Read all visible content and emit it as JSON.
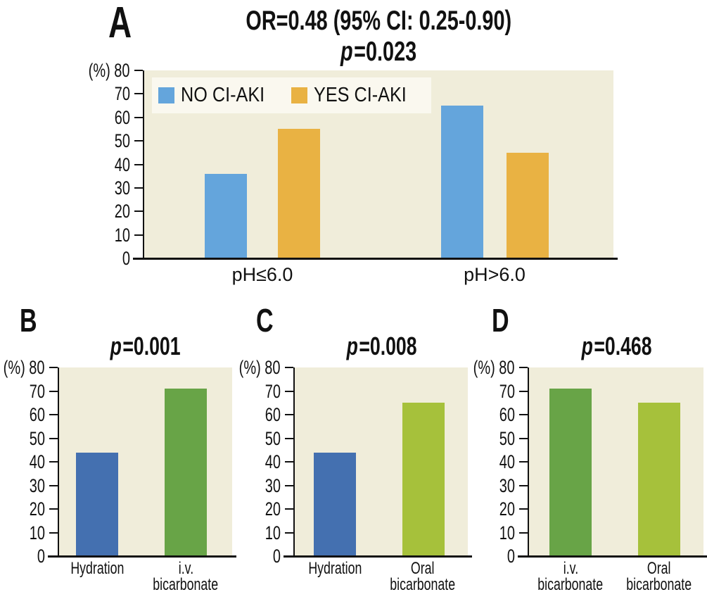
{
  "figure": {
    "colors": {
      "plot_background": "#f0edda",
      "legend_background": "#faf8ef",
      "axis": "#111111",
      "blue_light": "#64a5dc",
      "orange": "#e9b243",
      "blue_dark": "#4470b0",
      "green": "#68a447",
      "yellow_green": "#a6c13b"
    }
  },
  "chart_data": [
    {
      "panel": "A",
      "type": "bar",
      "title": "OR=0.48 (95% CI: 0.25-0.90)",
      "p_label": "p",
      "p_value": "=0.023",
      "y_axis": {
        "unit": "(%)",
        "min": 0,
        "max": 80,
        "step": 10
      },
      "categories": [
        "pH≤6.0",
        "pH>6.0"
      ],
      "series": [
        {
          "name": "NO CI-AKI",
          "color": "#64a5dc",
          "values": [
            36,
            65
          ]
        },
        {
          "name": "YES CI-AKI",
          "color": "#e9b243",
          "values": [
            55,
            45
          ]
        }
      ],
      "legend": {
        "position": "top-left",
        "items": [
          "NO CI-AKI",
          "YES CI-AKI"
        ]
      }
    },
    {
      "panel": "B",
      "type": "bar",
      "p_label": "p",
      "p_value": "=0.001",
      "y_axis": {
        "unit": "(%)",
        "min": 0,
        "max": 80,
        "step": 10
      },
      "categories": [
        [
          "Hydration"
        ],
        [
          "i.v.",
          "bicarbonate"
        ]
      ],
      "bars": [
        {
          "label": "Hydration",
          "value": 44,
          "color": "#4470b0"
        },
        {
          "label": "i.v. bicarbonate",
          "value": 71,
          "color": "#68a447"
        }
      ]
    },
    {
      "panel": "C",
      "type": "bar",
      "p_label": "p",
      "p_value": "=0.008",
      "y_axis": {
        "unit": "(%)",
        "min": 0,
        "max": 80,
        "step": 10
      },
      "categories": [
        [
          "Hydration"
        ],
        [
          "Oral",
          "bicarbonate"
        ]
      ],
      "bars": [
        {
          "label": "Hydration",
          "value": 44,
          "color": "#4470b0"
        },
        {
          "label": "Oral bicarbonate",
          "value": 65,
          "color": "#a6c13b"
        }
      ]
    },
    {
      "panel": "D",
      "type": "bar",
      "p_label": "p",
      "p_value": "=0.468",
      "y_axis": {
        "unit": "(%)",
        "min": 0,
        "max": 80,
        "step": 10
      },
      "categories": [
        [
          "i.v.",
          "bicarbonate"
        ],
        [
          "Oral",
          "bicarbonate"
        ]
      ],
      "bars": [
        {
          "label": "i.v. bicarbonate",
          "value": 71,
          "color": "#68a447"
        },
        {
          "label": "Oral bicarbonate",
          "value": 65,
          "color": "#a6c13b"
        }
      ]
    }
  ]
}
